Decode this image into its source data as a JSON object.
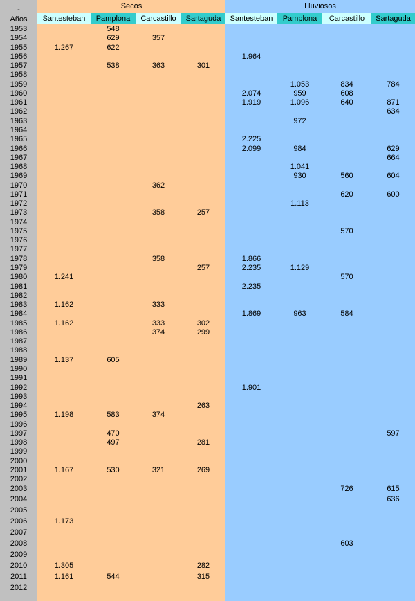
{
  "table": {
    "corner": [
      "-",
      "Años"
    ],
    "groups": [
      "Secos",
      "Lluviosos"
    ],
    "columns": [
      "Santesteban",
      "Pamplona",
      "Carcastillo",
      "Sartaguda",
      "Santesteban",
      "Pamplona",
      "Carcastillo",
      "Sartaguda"
    ],
    "rows": [
      [
        1953,
        null,
        "548",
        null,
        null,
        null,
        null,
        null,
        null
      ],
      [
        1954,
        null,
        "629",
        "357",
        null,
        null,
        null,
        null,
        null
      ],
      [
        1955,
        "1.267",
        "622",
        null,
        null,
        null,
        null,
        null,
        null
      ],
      [
        1956,
        null,
        null,
        null,
        null,
        "1.964",
        null,
        null,
        null
      ],
      [
        1957,
        null,
        "538",
        "363",
        "301",
        null,
        null,
        null,
        null
      ],
      [
        1958,
        null,
        null,
        null,
        null,
        null,
        null,
        null,
        null
      ],
      [
        1959,
        null,
        null,
        null,
        null,
        null,
        "1.053",
        "834",
        "784"
      ],
      [
        1960,
        null,
        null,
        null,
        null,
        "2.074",
        "959",
        "608",
        null
      ],
      [
        1961,
        null,
        null,
        null,
        null,
        "1.919",
        "1.096",
        "640",
        "871"
      ],
      [
        1962,
        null,
        null,
        null,
        null,
        null,
        null,
        null,
        "634"
      ],
      [
        1963,
        null,
        null,
        null,
        null,
        null,
        "972",
        null,
        null
      ],
      [
        1964,
        null,
        null,
        null,
        null,
        null,
        null,
        null,
        null
      ],
      [
        1965,
        null,
        null,
        null,
        null,
        "2.225",
        null,
        null,
        null
      ],
      [
        1966,
        null,
        null,
        null,
        null,
        "2.099",
        "984",
        null,
        "629"
      ],
      [
        1967,
        null,
        null,
        null,
        null,
        null,
        null,
        null,
        "664"
      ],
      [
        1968,
        null,
        null,
        null,
        null,
        null,
        "1.041",
        null,
        null
      ],
      [
        1969,
        null,
        null,
        null,
        null,
        null,
        "930",
        "560",
        "604"
      ],
      [
        1970,
        null,
        null,
        "362",
        null,
        null,
        null,
        null,
        null
      ],
      [
        1971,
        null,
        null,
        null,
        null,
        null,
        null,
        "620",
        "600"
      ],
      [
        1972,
        null,
        null,
        null,
        null,
        null,
        "1.113",
        null,
        null
      ],
      [
        1973,
        null,
        null,
        "358",
        "257",
        null,
        null,
        null,
        null
      ],
      [
        1974,
        null,
        null,
        null,
        null,
        null,
        null,
        null,
        null
      ],
      [
        1975,
        null,
        null,
        null,
        null,
        null,
        null,
        "570",
        null
      ],
      [
        1976,
        null,
        null,
        null,
        null,
        null,
        null,
        null,
        null
      ],
      [
        1977,
        null,
        null,
        null,
        null,
        null,
        null,
        null,
        null
      ],
      [
        1978,
        null,
        null,
        "358",
        null,
        "1.866",
        null,
        null,
        null
      ],
      [
        1979,
        null,
        null,
        null,
        "257",
        "2.235",
        "1.129",
        null,
        null
      ],
      [
        1980,
        "1.241",
        null,
        null,
        null,
        null,
        null,
        "570",
        null
      ],
      [
        1981,
        null,
        null,
        null,
        null,
        "2.235",
        null,
        null,
        null
      ],
      [
        1982,
        null,
        null,
        null,
        null,
        null,
        null,
        null,
        null
      ],
      [
        1983,
        "1.162",
        null,
        "333",
        null,
        null,
        null,
        null,
        null
      ],
      [
        1984,
        null,
        null,
        null,
        null,
        "1.869",
        "963",
        "584",
        null
      ],
      [
        1985,
        "1.162",
        null,
        "333",
        "302",
        null,
        null,
        null,
        null
      ],
      [
        1986,
        null,
        null,
        "374",
        "299",
        null,
        null,
        null,
        null
      ],
      [
        1987,
        null,
        null,
        null,
        null,
        null,
        null,
        null,
        null
      ],
      [
        1988,
        null,
        null,
        null,
        null,
        null,
        null,
        null,
        null
      ],
      [
        1989,
        "1.137",
        "605",
        null,
        null,
        null,
        null,
        null,
        null
      ],
      [
        1990,
        null,
        null,
        null,
        null,
        null,
        null,
        null,
        null
      ],
      [
        1991,
        null,
        null,
        null,
        null,
        null,
        null,
        null,
        null
      ],
      [
        1992,
        null,
        null,
        null,
        null,
        "1.901",
        null,
        null,
        null
      ],
      [
        1993,
        null,
        null,
        null,
        null,
        null,
        null,
        null,
        null
      ],
      [
        1994,
        null,
        null,
        null,
        "263",
        null,
        null,
        null,
        null
      ],
      [
        1995,
        "1.198",
        "583",
        "374",
        null,
        null,
        null,
        null,
        null
      ],
      [
        1996,
        null,
        null,
        null,
        null,
        null,
        null,
        null,
        null
      ],
      [
        1997,
        null,
        "470",
        null,
        null,
        null,
        null,
        null,
        "597"
      ],
      [
        1998,
        null,
        "497",
        null,
        "281",
        null,
        null,
        null,
        null
      ],
      [
        1999,
        null,
        null,
        null,
        null,
        null,
        null,
        null,
        null
      ],
      [
        2000,
        null,
        null,
        null,
        null,
        null,
        null,
        null,
        null
      ],
      [
        2001,
        "1.167",
        "530",
        "321",
        "269",
        null,
        null,
        null,
        null
      ],
      [
        2002,
        null,
        null,
        null,
        null,
        null,
        null,
        null,
        null
      ],
      [
        2003,
        null,
        null,
        null,
        null,
        null,
        null,
        "726",
        "615"
      ],
      [
        2004,
        null,
        null,
        null,
        null,
        null,
        null,
        null,
        "636"
      ],
      [
        2005,
        null,
        null,
        null,
        null,
        null,
        null,
        null,
        null
      ],
      [
        2006,
        "1.173",
        null,
        null,
        null,
        null,
        null,
        null,
        null
      ],
      [
        2007,
        null,
        null,
        null,
        null,
        null,
        null,
        null,
        null
      ],
      [
        2008,
        null,
        null,
        null,
        null,
        null,
        null,
        "603",
        null
      ],
      [
        2009,
        null,
        null,
        null,
        null,
        null,
        null,
        null,
        null
      ],
      [
        2010,
        "1.305",
        null,
        null,
        "282",
        null,
        null,
        null,
        null
      ],
      [
        2011,
        "1.161",
        "544",
        null,
        "315",
        null,
        null,
        null,
        null
      ],
      [
        2012,
        null,
        null,
        null,
        null,
        null,
        null,
        null,
        null
      ]
    ]
  }
}
